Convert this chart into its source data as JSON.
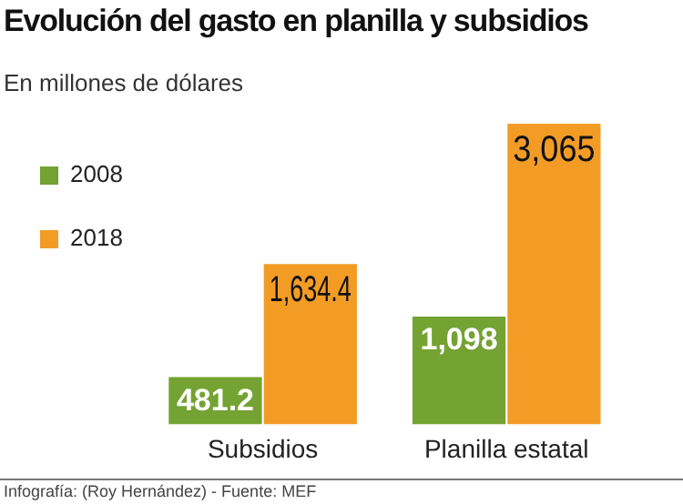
{
  "chart_data": {
    "type": "bar",
    "title": "Evolución del gasto en planilla y subsidios",
    "subtitle": "En millones de dólares",
    "categories": [
      "Subsidios",
      "Planilla estatal"
    ],
    "series": [
      {
        "name": "2008",
        "color": "#74a233",
        "values": [
          481.2,
          1098
        ],
        "value_labels": [
          "481.2",
          "1,098"
        ]
      },
      {
        "name": "2018",
        "color": "#f29c26",
        "values": [
          1634.4,
          3065
        ],
        "value_labels": [
          "1,634.4",
          "3,065"
        ]
      }
    ],
    "legend": "top left",
    "grid": false,
    "annotations": [
      "Infografía: (Roy Hernández) - Fuente: MEF"
    ]
  }
}
